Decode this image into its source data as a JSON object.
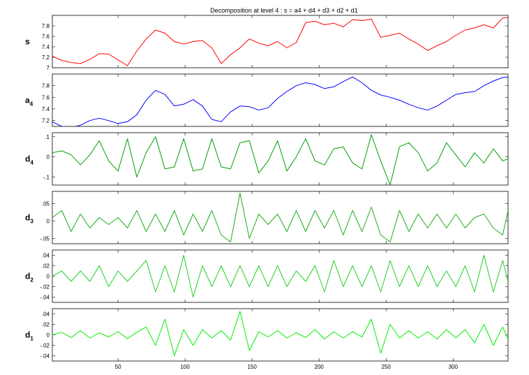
{
  "chart_data": {
    "type": "line",
    "title": "Decomposition at level 4 : s = a4 + d4 + d3 + d2 + d1",
    "xlim": [
      1,
      341
    ],
    "x_ticks": [
      50,
      100,
      150,
      200,
      250,
      300
    ],
    "grid": false,
    "panels": [
      {
        "id": "s",
        "label": "s",
        "label_sub": "",
        "color": "#ff0000",
        "ylim": [
          7.0,
          8.0
        ],
        "y_ticks": [
          7,
          7.2,
          7.4,
          7.6,
          7.8
        ],
        "x": [
          1,
          8,
          15,
          22,
          29,
          36,
          43,
          50,
          57,
          64,
          71,
          78,
          85,
          92,
          99,
          106,
          113,
          120,
          127,
          134,
          141,
          148,
          155,
          162,
          169,
          176,
          183,
          190,
          197,
          204,
          211,
          218,
          225,
          232,
          239,
          246,
          253,
          260,
          267,
          274,
          281,
          288,
          295,
          302,
          309,
          316,
          323,
          330,
          337,
          341
        ],
        "values": [
          7.22,
          7.14,
          7.1,
          7.08,
          7.16,
          7.27,
          7.26,
          7.15,
          7.04,
          7.32,
          7.55,
          7.72,
          7.66,
          7.5,
          7.45,
          7.5,
          7.52,
          7.38,
          7.08,
          7.25,
          7.38,
          7.55,
          7.47,
          7.42,
          7.5,
          7.38,
          7.48,
          7.86,
          7.89,
          7.82,
          7.85,
          7.78,
          7.92,
          7.9,
          7.93,
          7.58,
          7.62,
          7.66,
          7.55,
          7.45,
          7.33,
          7.42,
          7.5,
          7.62,
          7.72,
          7.76,
          7.82,
          7.76,
          7.95,
          7.96
        ]
      },
      {
        "id": "a4",
        "label": "a",
        "label_sub": "4",
        "color": "#0000ff",
        "ylim": [
          7.1,
          8.0
        ],
        "y_ticks": [
          7.2,
          7.4,
          7.6,
          7.8
        ],
        "x": [
          1,
          8,
          15,
          22,
          29,
          36,
          43,
          50,
          57,
          64,
          71,
          78,
          85,
          92,
          99,
          106,
          113,
          120,
          127,
          134,
          141,
          148,
          155,
          162,
          169,
          176,
          183,
          190,
          197,
          204,
          211,
          218,
          225,
          232,
          239,
          246,
          253,
          260,
          267,
          274,
          281,
          288,
          295,
          302,
          309,
          316,
          323,
          330,
          337,
          341
        ],
        "values": [
          7.18,
          7.1,
          7.08,
          7.12,
          7.2,
          7.24,
          7.2,
          7.15,
          7.18,
          7.3,
          7.55,
          7.72,
          7.65,
          7.45,
          7.48,
          7.56,
          7.45,
          7.22,
          7.18,
          7.35,
          7.45,
          7.44,
          7.38,
          7.42,
          7.58,
          7.7,
          7.8,
          7.85,
          7.82,
          7.75,
          7.78,
          7.87,
          7.95,
          7.85,
          7.72,
          7.64,
          7.6,
          7.55,
          7.48,
          7.42,
          7.38,
          7.45,
          7.55,
          7.65,
          7.68,
          7.7,
          7.8,
          7.88,
          7.94,
          7.95
        ]
      },
      {
        "id": "d4",
        "label": "d",
        "label_sub": "4",
        "color": "#00a000",
        "ylim": [
          -0.14,
          0.12
        ],
        "y_ticks": [
          -0.1,
          0,
          0.1
        ],
        "x": [
          1,
          8,
          15,
          22,
          29,
          36,
          43,
          50,
          57,
          64,
          71,
          78,
          85,
          92,
          99,
          106,
          113,
          120,
          127,
          134,
          141,
          148,
          155,
          162,
          169,
          176,
          183,
          190,
          197,
          204,
          211,
          218,
          225,
          232,
          239,
          246,
          253,
          260,
          267,
          274,
          281,
          288,
          295,
          302,
          309,
          316,
          323,
          330,
          337,
          341
        ],
        "values": [
          0.02,
          0.03,
          0.01,
          -0.04,
          0.01,
          0.08,
          -0.02,
          -0.07,
          0.09,
          -0.1,
          0.02,
          0.1,
          -0.06,
          -0.05,
          0.09,
          -0.07,
          -0.06,
          0.09,
          -0.05,
          -0.06,
          0.07,
          0.08,
          -0.08,
          -0.02,
          0.08,
          -0.07,
          0.0,
          0.09,
          -0.02,
          -0.04,
          0.04,
          0.05,
          -0.03,
          -0.06,
          0.11,
          -0.02,
          -0.14,
          0.05,
          0.07,
          0.02,
          -0.07,
          -0.03,
          0.07,
          0.01,
          -0.05,
          0.02,
          -0.03,
          0.04,
          -0.02,
          -0.01
        ]
      },
      {
        "id": "d3",
        "label": "d",
        "label_sub": "3",
        "color": "#1cab1c",
        "ylim": [
          -0.065,
          0.085
        ],
        "y_ticks": [
          -0.05,
          0,
          0.05
        ],
        "x": [
          1,
          8,
          15,
          22,
          29,
          36,
          43,
          50,
          57,
          64,
          71,
          78,
          85,
          92,
          99,
          106,
          113,
          120,
          127,
          134,
          141,
          148,
          155,
          162,
          169,
          176,
          183,
          190,
          197,
          204,
          211,
          218,
          225,
          232,
          239,
          246,
          253,
          260,
          267,
          274,
          281,
          288,
          295,
          302,
          309,
          316,
          323,
          330,
          337,
          341
        ],
        "values": [
          0.01,
          0.03,
          -0.03,
          0.02,
          -0.02,
          0.01,
          -0.01,
          0.01,
          -0.02,
          0.03,
          -0.03,
          0.02,
          -0.03,
          0.03,
          -0.04,
          0.02,
          -0.03,
          0.03,
          -0.04,
          -0.06,
          0.08,
          -0.05,
          0.02,
          -0.01,
          0.02,
          -0.03,
          0.03,
          -0.03,
          0.03,
          -0.02,
          0.03,
          -0.04,
          0.03,
          -0.03,
          0.04,
          -0.04,
          -0.06,
          0.03,
          -0.03,
          0.02,
          -0.02,
          0.02,
          -0.02,
          0.02,
          -0.02,
          0.01,
          0.02,
          -0.02,
          -0.04,
          0.03
        ]
      },
      {
        "id": "d2",
        "label": "d",
        "label_sub": "2",
        "color": "#22d022",
        "ylim": [
          -0.05,
          0.05
        ],
        "y_ticks": [
          -0.04,
          -0.02,
          0,
          0.02,
          0.04
        ],
        "x": [
          1,
          8,
          15,
          22,
          29,
          36,
          43,
          50,
          57,
          64,
          71,
          78,
          85,
          92,
          99,
          106,
          113,
          120,
          127,
          134,
          141,
          148,
          155,
          162,
          169,
          176,
          183,
          190,
          197,
          204,
          211,
          218,
          225,
          232,
          239,
          246,
          253,
          260,
          267,
          274,
          281,
          288,
          295,
          302,
          309,
          316,
          323,
          330,
          337,
          341
        ],
        "values": [
          0.0,
          0.01,
          -0.01,
          0.01,
          -0.01,
          0.02,
          -0.02,
          0.01,
          -0.01,
          0.01,
          0.03,
          -0.03,
          0.02,
          -0.03,
          0.04,
          -0.04,
          0.02,
          -0.02,
          0.02,
          -0.02,
          0.02,
          -0.02,
          0.02,
          -0.02,
          0.02,
          -0.02,
          0.01,
          -0.01,
          0.02,
          -0.03,
          0.03,
          -0.02,
          0.02,
          -0.02,
          0.02,
          -0.03,
          0.03,
          -0.02,
          0.02,
          -0.02,
          0.02,
          -0.02,
          0.01,
          -0.02,
          0.02,
          -0.03,
          0.04,
          -0.03,
          0.03,
          -0.01
        ]
      },
      {
        "id": "d1",
        "label": "d",
        "label_sub": "1",
        "color": "#00ee00",
        "ylim": [
          -0.05,
          0.05
        ],
        "y_ticks": [
          -0.04,
          -0.02,
          0,
          0.02,
          0.04
        ],
        "x": [
          1,
          8,
          15,
          22,
          29,
          36,
          43,
          50,
          57,
          64,
          71,
          78,
          85,
          92,
          99,
          106,
          113,
          120,
          127,
          134,
          141,
          148,
          155,
          162,
          169,
          176,
          183,
          190,
          197,
          204,
          211,
          218,
          225,
          232,
          239,
          246,
          253,
          260,
          267,
          274,
          281,
          288,
          295,
          302,
          309,
          316,
          323,
          330,
          337,
          341
        ],
        "values": [
          0.0,
          0.005,
          -0.005,
          0.008,
          -0.006,
          0.004,
          -0.004,
          0.006,
          -0.007,
          0.005,
          0.015,
          -0.02,
          0.03,
          -0.04,
          0.01,
          -0.02,
          0.01,
          -0.006,
          0.008,
          -0.01,
          0.045,
          -0.03,
          0.006,
          -0.004,
          0.008,
          -0.006,
          0.004,
          -0.005,
          0.01,
          -0.008,
          0.006,
          -0.006,
          0.006,
          -0.004,
          0.03,
          -0.035,
          0.02,
          -0.006,
          0.008,
          -0.006,
          0.006,
          -0.008,
          0.01,
          -0.006,
          0.01,
          -0.015,
          0.02,
          -0.02,
          0.015,
          -0.008
        ]
      }
    ]
  }
}
